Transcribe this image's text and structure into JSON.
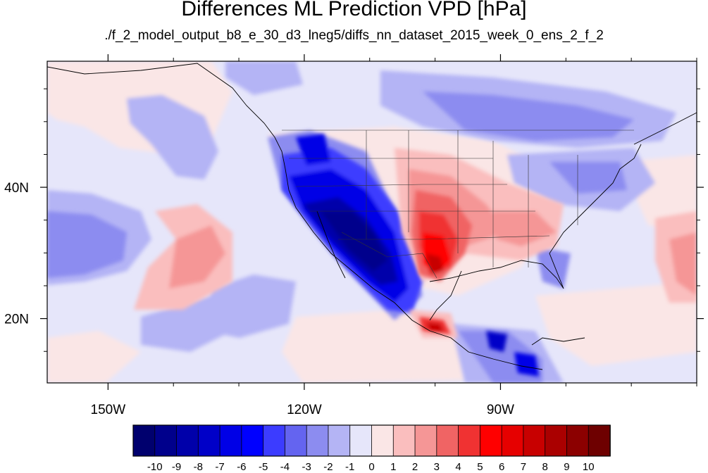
{
  "title": "Differences ML Prediction VPD [hPa]",
  "subtitle": "./f_2_model_output_b8_e_30_d3_lneg5/diffs_nn_dataset_2015_week_0_ens_2_f_2",
  "chart_data": {
    "type": "heatmap",
    "title": "Differences ML Prediction VPD [hPa]",
    "subtitle": "./f_2_model_output_b8_e_30_d3_lneg5/diffs_nn_dataset_2015_week_0_ens_2_f_2",
    "x_ticks": [
      {
        "value": -150,
        "label": "150W"
      },
      {
        "value": -120,
        "label": "120W"
      },
      {
        "value": -90,
        "label": "90W"
      }
    ],
    "y_ticks": [
      {
        "value": 40,
        "label": "40N"
      },
      {
        "value": 20,
        "label": "20N"
      }
    ],
    "xlim": [
      -159.3,
      -60
    ],
    "ylim": [
      10.2,
      59.2
    ],
    "colorbar": {
      "labels": [
        "-10",
        "-9",
        "-8",
        "-7",
        "-6",
        "-5",
        "-4",
        "-3",
        "-2",
        "-1",
        "0",
        "1",
        "2",
        "3",
        "4",
        "5",
        "6",
        "7",
        "8",
        "9",
        "10"
      ],
      "colors": [
        "#00006e",
        "#00008c",
        "#0000aa",
        "#0000c8",
        "#0000e6",
        "#0000ff",
        "#3c3cff",
        "#6464f0",
        "#8c8cf0",
        "#b4b4f5",
        "#e6e6fa",
        "#fae6e6",
        "#fabebe",
        "#f59696",
        "#f06464",
        "#f03232",
        "#ff0000",
        "#e60000",
        "#c80000",
        "#aa0000",
        "#8c0000",
        "#6e0000"
      ]
    }
  }
}
